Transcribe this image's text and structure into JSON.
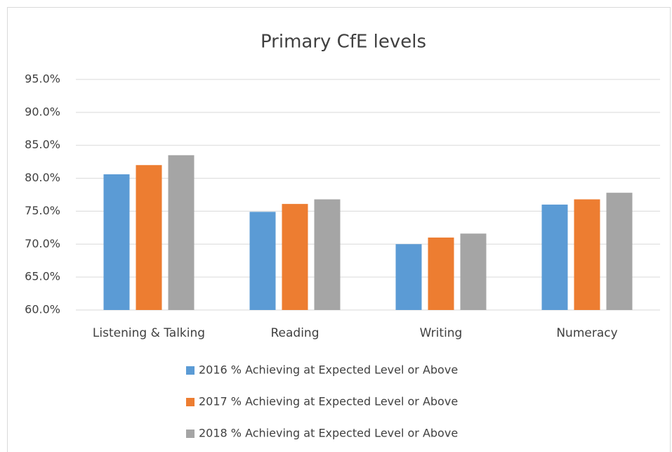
{
  "chart_data": {
    "type": "bar",
    "title": "Primary CfE levels",
    "categories": [
      "Listening & Talking",
      "Reading",
      "Writing",
      "Numeracy"
    ],
    "series": [
      {
        "name": "2016 % Achieving at Expected Level or Above",
        "color": "#5b9bd5",
        "values": [
          80.6,
          74.9,
          70.0,
          76.0
        ]
      },
      {
        "name": "2017 % Achieving at Expected Level or Above",
        "color": "#ed7d31",
        "values": [
          82.0,
          76.1,
          71.0,
          76.8
        ]
      },
      {
        "name": "2018 % Achieving at Expected Level or Above",
        "color": "#a5a5a5",
        "values": [
          83.5,
          76.8,
          71.6,
          77.8
        ]
      }
    ],
    "ylim": [
      60,
      95
    ],
    "yticks": [
      {
        "value": 60,
        "label": "60.0%"
      },
      {
        "value": 65,
        "label": "65.0%"
      },
      {
        "value": 70,
        "label": "70.0%"
      },
      {
        "value": 75,
        "label": "75.0%"
      },
      {
        "value": 80,
        "label": "80.0%"
      },
      {
        "value": 85,
        "label": "85.0%"
      },
      {
        "value": 90,
        "label": "90.0%"
      },
      {
        "value": 95,
        "label": "95.0%"
      }
    ],
    "grid": true,
    "legend": "bottom"
  }
}
